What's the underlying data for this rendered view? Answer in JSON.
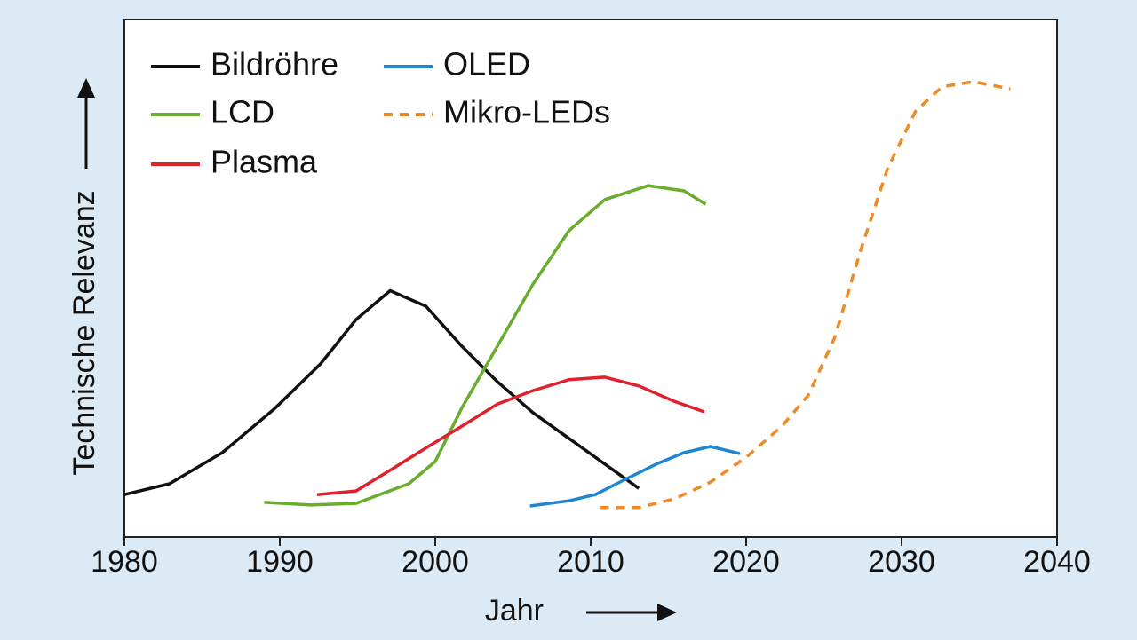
{
  "chart_data": {
    "type": "line",
    "xlabel": "Jahr",
    "ylabel": "Technische Relevanz",
    "xlim": [
      1980,
      2040
    ],
    "xticks": [
      1980,
      1990,
      2000,
      2010,
      2020,
      2030,
      2040
    ],
    "ylim": [
      0,
      100
    ],
    "series": [
      {
        "name": "Bildröhre",
        "color": "#111111",
        "style": "solid",
        "x": [
          1980,
          1982.9,
          1986.3,
          1989.7,
          1992.6,
          1994.9,
          1997.1,
          1999.4,
          2001.7,
          2004,
          2006.3,
          2009.1,
          2013.1
        ],
        "values": [
          8.2,
          10.3,
          16.3,
          24.9,
          33.4,
          42.0,
          47.6,
          44.6,
          36.9,
          30.0,
          24.0,
          18.0,
          9.4
        ]
      },
      {
        "name": "LCD",
        "color": "#6aac2e",
        "style": "solid",
        "x": [
          1989,
          1992,
          1994.9,
          1996.6,
          1998.3,
          2000,
          2001.7,
          2004,
          2006.3,
          2008.6,
          2010.9,
          2013.7,
          2016,
          2017.4
        ],
        "values": [
          6.7,
          6.2,
          6.5,
          8.4,
          10.3,
          14.6,
          24.9,
          36.9,
          48.9,
          59.2,
          65.2,
          67.9,
          66.9,
          64.3
        ]
      },
      {
        "name": "Plasma",
        "color": "#e0202a",
        "style": "solid",
        "x": [
          1992.4,
          1994.9,
          1997.1,
          1999.4,
          2001.7,
          2004,
          2006.3,
          2008.6,
          2010.9,
          2013.1,
          2015.4,
          2017.3
        ],
        "values": [
          8.2,
          8.9,
          12.9,
          17.2,
          21.4,
          25.7,
          28.3,
          30.4,
          30.9,
          29.2,
          26.2,
          24.2
        ]
      },
      {
        "name": "OLED",
        "color": "#1f86cf",
        "style": "solid",
        "x": [
          2006.1,
          2008.6,
          2010.3,
          2012,
          2014.3,
          2016,
          2017.7,
          2019.6
        ],
        "values": [
          6.0,
          7.0,
          8.2,
          10.8,
          14.2,
          16.3,
          17.5,
          16.1
        ]
      },
      {
        "name": "Mikro-LEDs",
        "color": "#f08a24",
        "style": "dashed",
        "x": [
          2010.6,
          2013.1,
          2015.4,
          2017.7,
          2020,
          2022.3,
          2024,
          2025.7,
          2027.4,
          2029.1,
          2030.9,
          2032.6,
          2034.6,
          2037
        ],
        "values": [
          5.7,
          5.7,
          7.4,
          10.6,
          15.4,
          21.4,
          27.4,
          38.6,
          55.7,
          71.2,
          82.3,
          87.0,
          88.0,
          86.6
        ]
      }
    ]
  }
}
